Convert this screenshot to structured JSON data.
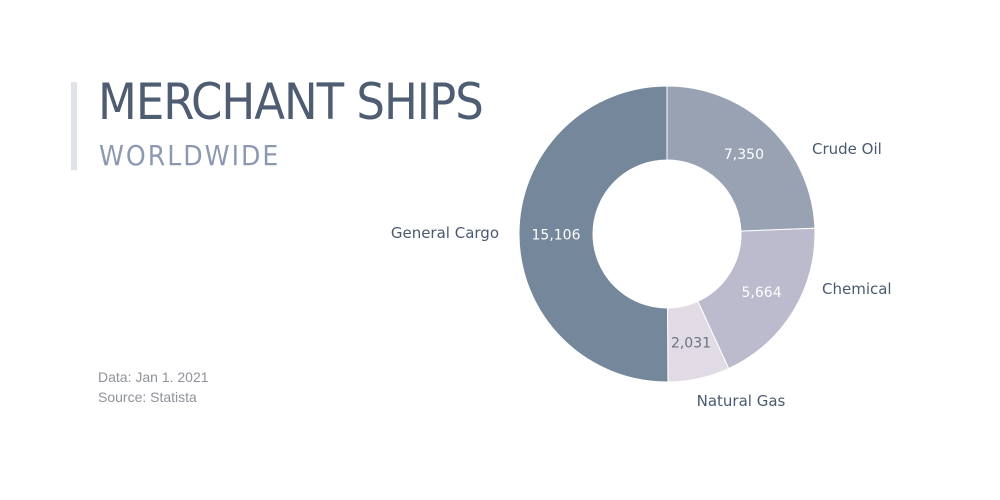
{
  "header": {
    "title": "MERCHANT SHIPS",
    "subtitle": "WORLDWIDE"
  },
  "notes": {
    "date": "Data:  Jan 1. 2021",
    "source": "Source: Statista"
  },
  "chart_data": {
    "type": "pie",
    "donut": true,
    "categories": [
      "Crude Oil",
      "Chemical",
      "Natural Gas",
      "General Cargo"
    ],
    "values": [
      7350,
      5664,
      2031,
      15106
    ],
    "value_labels": [
      "7,350",
      "5,664",
      "2,031",
      "15,106"
    ],
    "colors": [
      "#99a2b3",
      "#bcbbcd",
      "#e1dbe5",
      "#74879b"
    ],
    "legend": "none"
  }
}
